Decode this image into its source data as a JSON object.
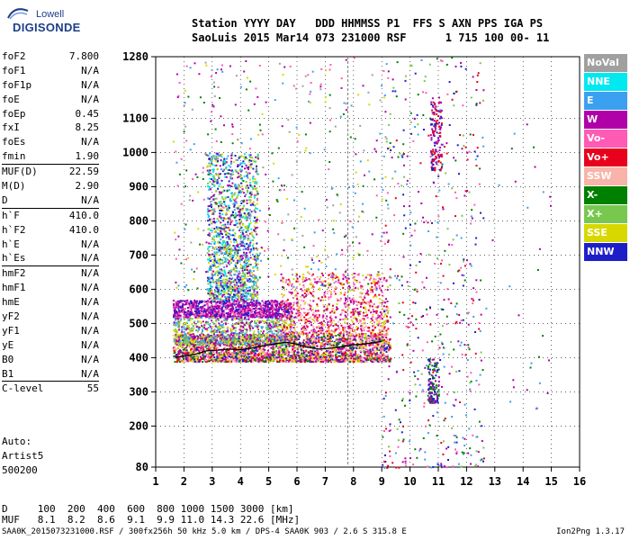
{
  "logo": {
    "top": "Lowell",
    "bottom": "DIGISONDE"
  },
  "header": {
    "line1": "Station YYYY DAY   DDD HHMMSS P1  FFS S AXN PPS IGA PS",
    "line2": "SaoLuis 2015 Mar14 073 231000 RSF      1 715 100 00- 11"
  },
  "params": [
    {
      "name": "foF2",
      "value": "7.800"
    },
    {
      "name": "foF1",
      "value": "N/A"
    },
    {
      "name": "foF1p",
      "value": "N/A"
    },
    {
      "name": "foE",
      "value": "N/A"
    },
    {
      "name": "foEp",
      "value": "0.45"
    },
    {
      "name": "fxI",
      "value": "8.25"
    },
    {
      "name": "foEs",
      "value": "N/A"
    },
    {
      "name": "fmin",
      "value": "1.90",
      "sep": true
    },
    {
      "name": "MUF(D)",
      "value": "22.59"
    },
    {
      "name": "M(D)",
      "value": "2.90"
    },
    {
      "name": "D",
      "value": "N/A",
      "sep": true
    },
    {
      "name": "h`F",
      "value": "410.0"
    },
    {
      "name": "h`F2",
      "value": "410.0"
    },
    {
      "name": "h`E",
      "value": "N/A"
    },
    {
      "name": "h`Es",
      "value": "N/A",
      "sep": true
    },
    {
      "name": "hmF2",
      "value": "N/A"
    },
    {
      "name": "hmF1",
      "value": "N/A"
    },
    {
      "name": "hmE",
      "value": "N/A"
    },
    {
      "name": "yF2",
      "value": "N/A"
    },
    {
      "name": "yF1",
      "value": "N/A"
    },
    {
      "name": "yE",
      "value": "N/A"
    },
    {
      "name": "B0",
      "value": "N/A"
    },
    {
      "name": "B1",
      "value": "N/A",
      "sep": true
    },
    {
      "name": "C-level",
      "value": "55"
    }
  ],
  "autoscaling": {
    "line1": "Auto:",
    "line2": "Artist5",
    "line3": "500200"
  },
  "legend": [
    {
      "label": "NoVal",
      "color": "#a0a0a0"
    },
    {
      "label": "NNE",
      "color": "#00e8f0"
    },
    {
      "label": "E",
      "color": "#3ca0f0"
    },
    {
      "label": "W",
      "color": "#b000a8"
    },
    {
      "label": "Vo-",
      "color": "#ff5ab4"
    },
    {
      "label": "Vo+",
      "color": "#e8001c"
    },
    {
      "label": "SSW",
      "color": "#f8b4a8"
    },
    {
      "label": "X-",
      "color": "#008000"
    },
    {
      "label": "X+",
      "color": "#78c850"
    },
    {
      "label": "SSE",
      "color": "#d8d800"
    },
    {
      "label": "NNW",
      "color": "#1e1ec8"
    }
  ],
  "muf_table": {
    "row1": "D     100  200  400  600  800 1000 1500 3000 [km]",
    "row2": "MUF   8.1  8.2  8.6  9.1  9.9 11.0 14.3 22.6 [MHz]"
  },
  "footer": {
    "line": "SAA0K_2015073231000.RSF / 300fx256h 50 kHz 5.0 km / DPS-4 SAA0K 903 / 2.6 S 315.8 E",
    "version": "Ion2Png 1.3.17"
  },
  "chart_data": {
    "type": "scatter",
    "title": "",
    "xlabel": "",
    "ylabel": "",
    "x_ticks": [
      1,
      2,
      3,
      4,
      5,
      6,
      7,
      8,
      9,
      10,
      11,
      12,
      13,
      14,
      15,
      16
    ],
    "y_ticks": [
      80,
      200,
      300,
      400,
      500,
      600,
      700,
      800,
      900,
      1000,
      1100,
      1280
    ],
    "xlim": [
      1,
      16
    ],
    "ylim": [
      80,
      1280
    ],
    "foF2": 7.8,
    "trace_x": [
      1.7,
      2.0,
      2.4,
      2.8,
      3.2,
      3.6,
      4.0,
      4.4,
      4.8,
      5.2,
      5.6,
      6.0,
      6.4,
      6.8,
      7.2,
      7.6,
      8.0,
      8.4,
      8.8,
      9.0
    ],
    "trace_y": [
      400,
      405,
      410,
      420,
      422,
      425,
      423,
      428,
      435,
      440,
      445,
      440,
      430,
      425,
      428,
      432,
      438,
      440,
      445,
      448
    ],
    "clusters": [
      {
        "f": [
          1.6,
          9.3
        ],
        "h": [
          390,
          470
        ],
        "n": 2600,
        "colors": [
          "#e8001c",
          "#ff5ab4",
          "#d8d800",
          "#b000a8",
          "#008000",
          "#1e1ec8",
          "#f8b4a8"
        ]
      },
      {
        "f": [
          1.6,
          5.8
        ],
        "h": [
          520,
          570
        ],
        "n": 1000,
        "colors": [
          "#b000a8",
          "#1e1ec8",
          "#b000a8",
          "#ff5ab4"
        ]
      },
      {
        "f": [
          1.6,
          5.8
        ],
        "h": [
          440,
          520
        ],
        "n": 900,
        "colors": [
          "#d8d800",
          "#b000a8",
          "#78c850",
          "#3ca0f0"
        ]
      },
      {
        "f": [
          2.8,
          4.6
        ],
        "h": [
          570,
          1000
        ],
        "n": 1400,
        "colors": [
          "#b000a8",
          "#d8d800",
          "#1e1ec8",
          "#78c850",
          "#3ca0f0",
          "#00e8f0"
        ]
      },
      {
        "f": [
          5.4,
          9.2
        ],
        "h": [
          470,
          650
        ],
        "n": 900,
        "colors": [
          "#ff5ab4",
          "#e8001c",
          "#b000a8",
          "#d8d800",
          "#f8b4a8"
        ]
      },
      {
        "f": [
          1.6,
          9.3
        ],
        "h": [
          600,
          1280
        ],
        "n": 450,
        "colors": [
          "#a0a0a0",
          "#d8d800",
          "#b000a8",
          "#008000",
          "#3ca0f0",
          "#ff5ab4"
        ]
      },
      {
        "f": [
          9.0,
          12.6
        ],
        "h": [
          80,
          1280
        ],
        "n": 520,
        "colors": [
          "#b000a8",
          "#008000",
          "#ff5ab4",
          "#1e1ec8",
          "#e8001c",
          "#78c850",
          "#3ca0f0"
        ]
      },
      {
        "f": [
          10.7,
          11.1
        ],
        "h": [
          950,
          1150
        ],
        "n": 140,
        "colors": [
          "#b000a8",
          "#1e1ec8",
          "#e8001c"
        ]
      },
      {
        "f": [
          10.6,
          11.0
        ],
        "h": [
          270,
          400
        ],
        "n": 120,
        "colors": [
          "#b000a8",
          "#1e1ec8",
          "#008000"
        ]
      },
      {
        "f": [
          12.5,
          15.0
        ],
        "h": [
          250,
          1100
        ],
        "n": 30,
        "colors": [
          "#b000a8",
          "#008000",
          "#3ca0f0"
        ]
      }
    ]
  }
}
